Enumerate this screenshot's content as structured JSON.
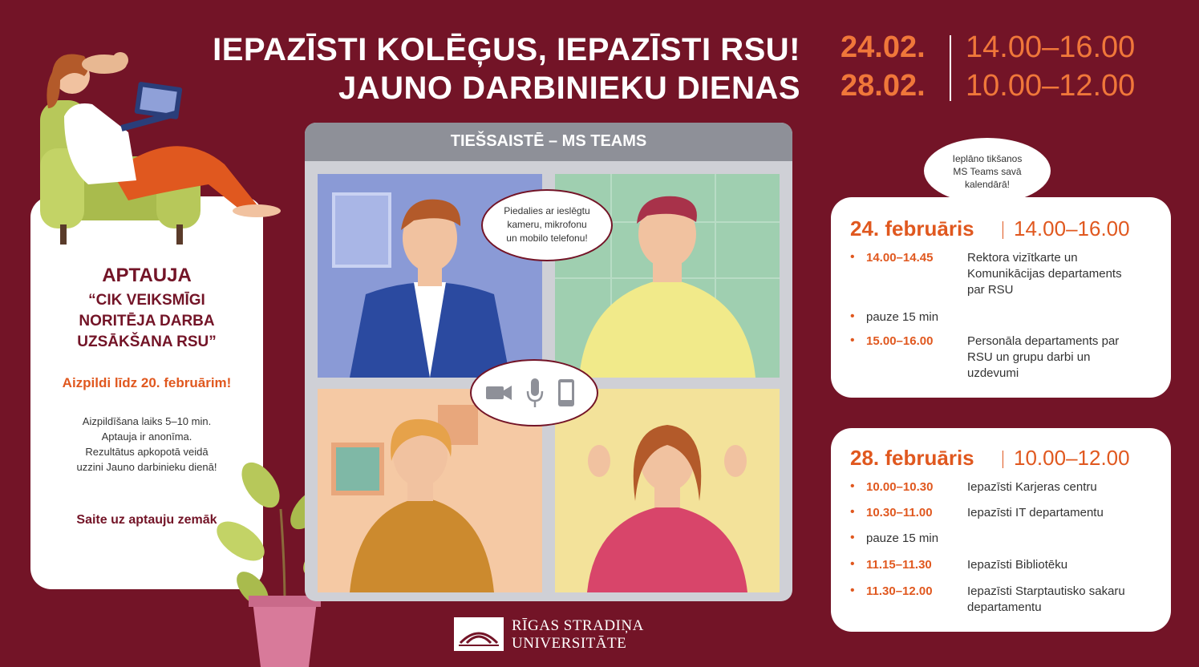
{
  "header": {
    "title_line1": "IEPAZĪSTI KOLĒĢUS, IEPAZĪSTI RSU!",
    "title_line2": "JAUNO DARBINIEKU DIENAS",
    "dates": [
      {
        "date": "24.02.",
        "time": "14.00–16.00"
      },
      {
        "date": "28.02.",
        "time": "10.00–12.00"
      }
    ]
  },
  "survey": {
    "heading": "APTAUJA",
    "quote_line1": "“CIK VEIKSMĪGI",
    "quote_line2": "NORITĒJA DARBA",
    "quote_line3": "UZSĀKŠANA RSU”",
    "deadline": "Aizpildi līdz 20. februārim!",
    "info_line1": "Aizpildīšana laiks 5–10 min.",
    "info_line2": "Aptauja ir anonīma.",
    "info_line3": "Rezultātus apkopotā veidā",
    "info_line4": "uzzini Jauno darbinieku dienā!",
    "link_text": "Saite uz aptauju zemāk"
  },
  "meeting": {
    "window_title": "TIEŠSAISTĒ – MS TEAMS",
    "bubble_line1": "Piedalies ar ieslēgtu",
    "bubble_line2": "kameru, mikrofonu",
    "bubble_line3": "un mobilo telefonu!",
    "icons": [
      "video-camera-icon",
      "microphone-icon",
      "mobile-phone-icon"
    ]
  },
  "calendar_bubble": {
    "line1": "Ieplāno tikšanos",
    "line2": "MS Teams savā",
    "line3": "kalendārā!"
  },
  "day1": {
    "title": "24. februāris",
    "time": "14.00–16.00",
    "rows": [
      {
        "time": "14.00–14.45",
        "line1": "Rektora vizītkarte un",
        "line2": "Komunikācijas departaments",
        "line3": "par RSU"
      },
      {
        "pause": "pauze 15 min"
      },
      {
        "time": "15.00–16.00",
        "line1": "Personāla departaments par",
        "line2": "RSU un grupu darbi un",
        "line3": "uzdevumi"
      }
    ]
  },
  "day2": {
    "title": "28. februāris",
    "time": "10.00–12.00",
    "rows": [
      {
        "time": "10.00–10.30",
        "line1": "Iepazīsti Karjeras centru"
      },
      {
        "time": "10.30–11.00",
        "line1": "Iepazīsti IT departamentu"
      },
      {
        "pause": "pauze 15 min"
      },
      {
        "time": "11.15–11.30",
        "line1": "Iepazīsti Bibliotēku"
      },
      {
        "time": "11.30–12.00",
        "line1": "Iepazīsti Starptautisko sakaru",
        "line2": "departamentu"
      }
    ]
  },
  "logo": {
    "line1": "RĪGAS STRADIŅA",
    "line2": "UNIVERSITĀTE"
  },
  "colors": {
    "background": "#731427",
    "accent_orange": "#f0773a",
    "schedule_orange": "#e0581f",
    "white": "#ffffff"
  }
}
